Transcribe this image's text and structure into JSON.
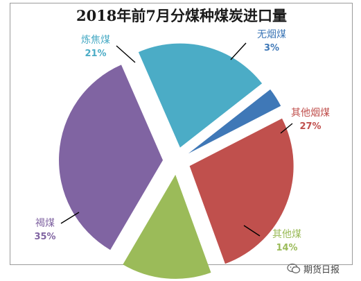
{
  "chart_data": {
    "type": "pie",
    "title": "2018年前7月分煤种煤炭进口量",
    "slices": [
      {
        "name": "无烟煤",
        "value": 3,
        "label": "3%",
        "color": "#3f78b7"
      },
      {
        "name": "其他烟煤",
        "value": 27,
        "label": "27%",
        "color": "#c0504d"
      },
      {
        "name": "其他煤",
        "value": 14,
        "label": "14%",
        "color": "#9bbb59"
      },
      {
        "name": "褐煤",
        "value": 35,
        "label": "35%",
        "color": "#8064a2"
      },
      {
        "name": "炼焦煤",
        "value": 21,
        "label": "21%",
        "color": "#4bacc6"
      }
    ],
    "exploded": true
  },
  "watermark": {
    "text": "期货日报",
    "icon": "wechat-icon"
  }
}
